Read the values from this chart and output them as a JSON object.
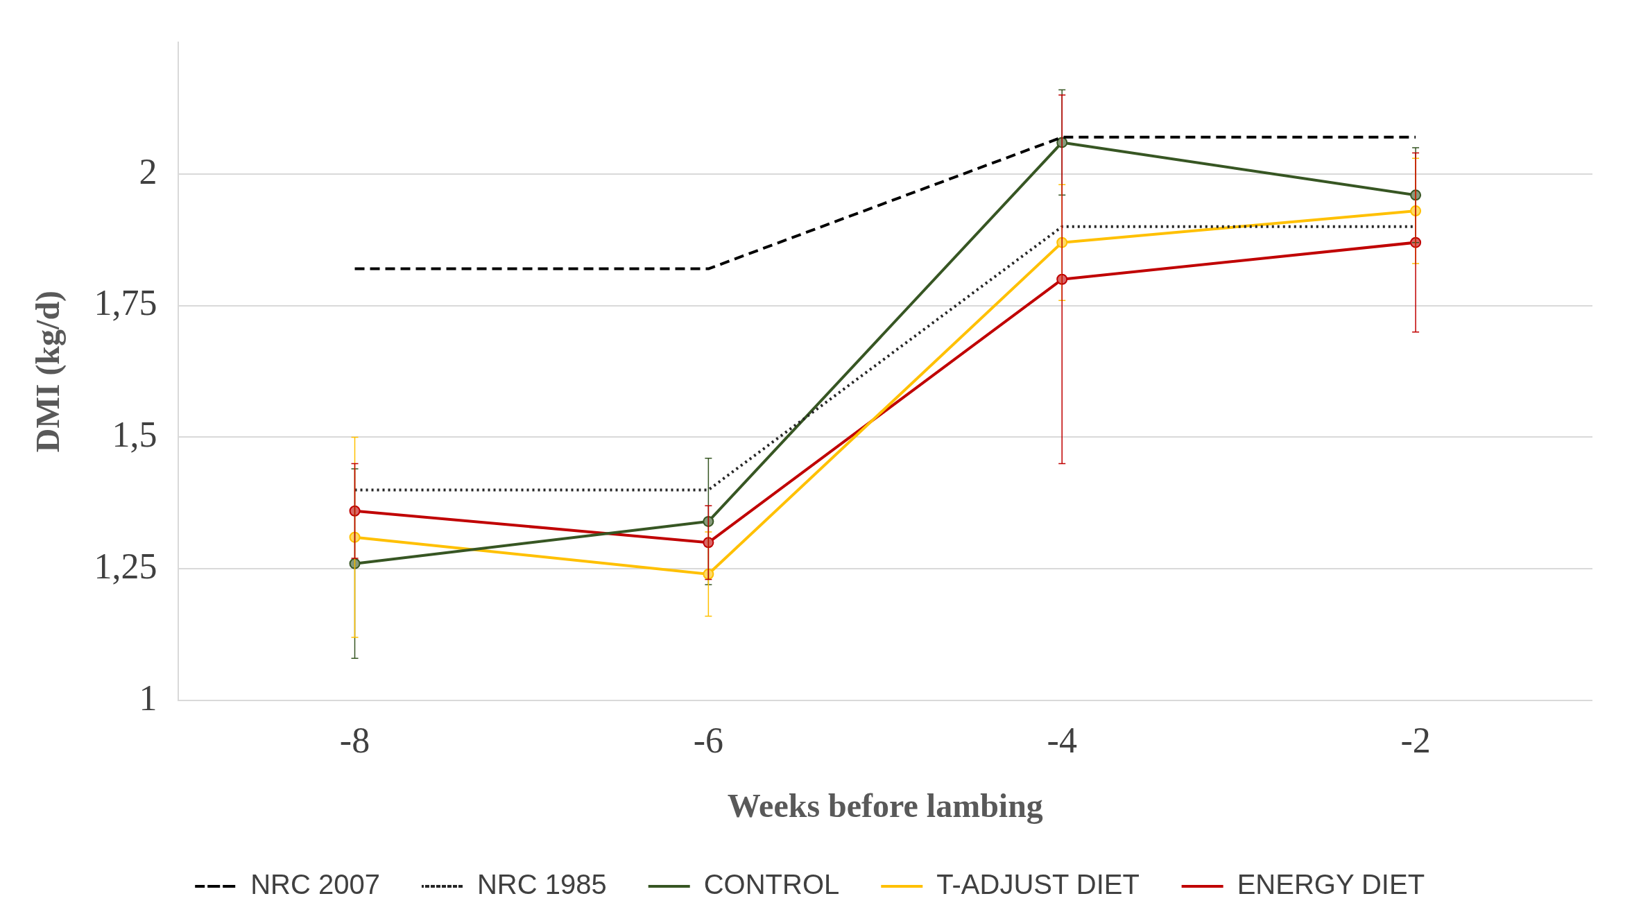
{
  "chart_data": {
    "type": "line",
    "xlabel": "Weeks before lambing",
    "ylabel": "DMI (kg/d)",
    "categories": [
      "-8",
      "-6",
      "-4",
      "-2"
    ],
    "ylim": [
      1,
      2.25
    ],
    "yticks": [
      {
        "value": 1,
        "label": "1"
      },
      {
        "value": 1.25,
        "label": "1,25"
      },
      {
        "value": 1.5,
        "label": "1,5"
      },
      {
        "value": 1.75,
        "label": "1,75"
      },
      {
        "value": 2,
        "label": "2"
      }
    ],
    "grid": "y",
    "legend": "bottom",
    "series": [
      {
        "name": "NRC 2007",
        "color": "#000000",
        "values": [
          1.82,
          1.82,
          2.07,
          2.07
        ],
        "line_style": "dashed",
        "marker": "none"
      },
      {
        "name": "NRC 1985",
        "color": "#262626",
        "values": [
          1.4,
          1.4,
          1.9,
          1.9
        ],
        "line_style": "dotted",
        "marker": "none"
      },
      {
        "name": "CONTROL",
        "color": "#375623",
        "values": [
          1.26,
          1.34,
          2.06,
          1.96
        ],
        "errors": [
          0.18,
          0.12,
          0.1,
          0.09
        ],
        "line_style": "solid",
        "marker": "circle"
      },
      {
        "name": "T-ADJUST DIET",
        "color": "#ffc000",
        "values": [
          1.31,
          1.24,
          1.87,
          1.93
        ],
        "errors": [
          0.19,
          0.08,
          0.11,
          0.1
        ],
        "line_style": "solid",
        "marker": "circle"
      },
      {
        "name": "ENERGY DIET",
        "color": "#c00000",
        "values": [
          1.36,
          1.3,
          1.8,
          1.87
        ],
        "errors": [
          0.09,
          0.07,
          0.35,
          0.17
        ],
        "line_style": "solid",
        "marker": "circle"
      }
    ]
  }
}
